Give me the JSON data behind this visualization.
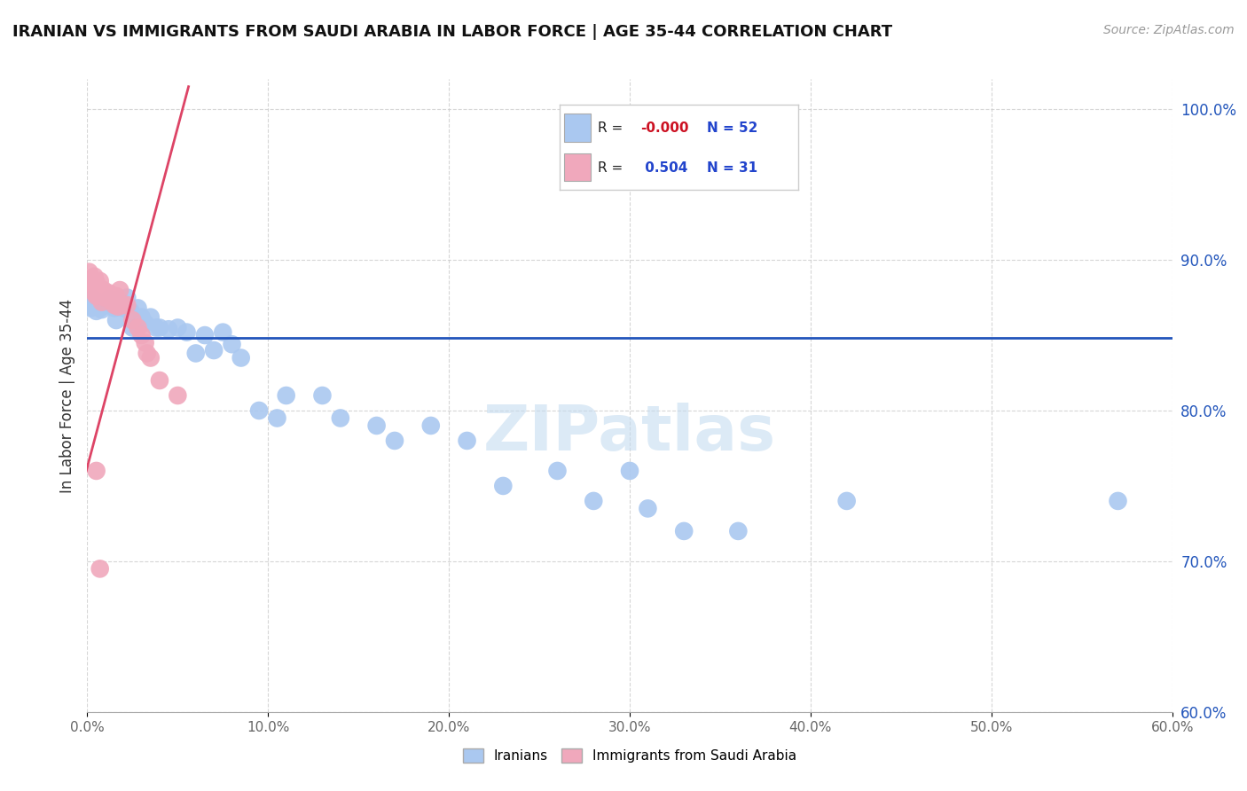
{
  "title": "IRANIAN VS IMMIGRANTS FROM SAUDI ARABIA IN LABOR FORCE | AGE 35-44 CORRELATION CHART",
  "source": "Source: ZipAtlas.com",
  "ylabel": "In Labor Force | Age 35-44",
  "xlim": [
    0.0,
    0.6
  ],
  "ylim": [
    0.6,
    1.02
  ],
  "xticklabels": [
    "0.0%",
    "",
    "",
    "",
    "",
    "",
    "",
    "",
    "",
    "10.0%",
    "",
    "",
    "",
    "",
    "",
    "",
    "",
    "",
    "20.0%",
    "",
    "",
    "",
    "",
    "",
    "",
    "",
    "",
    "",
    "30.0%",
    "",
    "",
    "",
    "",
    "",
    "",
    "",
    "",
    "",
    "40.0%",
    "",
    "",
    "",
    "",
    "",
    "",
    "",
    "",
    "",
    "50.0%",
    "",
    "",
    "",
    "",
    "",
    "",
    "",
    "",
    "",
    "60.0%"
  ],
  "xtick_positions": [
    0.0,
    0.1,
    0.2,
    0.3,
    0.4,
    0.5,
    0.6
  ],
  "xtick_labels_main": [
    "0.0%",
    "10.0%",
    "20.0%",
    "30.0%",
    "40.0%",
    "50.0%",
    "60.0%"
  ],
  "ytick_positions": [
    0.6,
    0.7,
    0.8,
    0.9,
    1.0
  ],
  "ytick_labels": [
    "60.0%",
    "70.0%",
    "80.0%",
    "90.0%",
    "100.0%"
  ],
  "legend_r1": "-0.000",
  "legend_n1": "52",
  "legend_r2": "0.504",
  "legend_n2": "31",
  "blue_color": "#aac8f0",
  "pink_color": "#f0a8bc",
  "blue_line_color": "#2255bb",
  "pink_line_color": "#dd4466",
  "watermark": "ZIPatlas",
  "blue_scatter_x": [
    0.001,
    0.002,
    0.002,
    0.003,
    0.003,
    0.004,
    0.005,
    0.006,
    0.007,
    0.008,
    0.01,
    0.012,
    0.015,
    0.016,
    0.018,
    0.02,
    0.022,
    0.024,
    0.025,
    0.028,
    0.03,
    0.032,
    0.035,
    0.038,
    0.04,
    0.045,
    0.05,
    0.055,
    0.06,
    0.065,
    0.07,
    0.075,
    0.08,
    0.085,
    0.095,
    0.105,
    0.11,
    0.13,
    0.14,
    0.16,
    0.17,
    0.19,
    0.21,
    0.23,
    0.26,
    0.28,
    0.3,
    0.31,
    0.33,
    0.36,
    0.42,
    0.57
  ],
  "blue_scatter_y": [
    0.873,
    0.87,
    0.868,
    0.874,
    0.869,
    0.871,
    0.866,
    0.872,
    0.868,
    0.867,
    0.87,
    0.874,
    0.868,
    0.86,
    0.874,
    0.868,
    0.875,
    0.866,
    0.855,
    0.868,
    0.862,
    0.858,
    0.862,
    0.855,
    0.855,
    0.854,
    0.855,
    0.852,
    0.838,
    0.85,
    0.84,
    0.852,
    0.844,
    0.835,
    0.8,
    0.795,
    0.81,
    0.81,
    0.795,
    0.79,
    0.78,
    0.79,
    0.78,
    0.75,
    0.76,
    0.74,
    0.76,
    0.735,
    0.72,
    0.72,
    0.74,
    0.74
  ],
  "pink_scatter_x": [
    0.001,
    0.002,
    0.003,
    0.004,
    0.004,
    0.005,
    0.005,
    0.006,
    0.007,
    0.007,
    0.008,
    0.009,
    0.01,
    0.012,
    0.013,
    0.015,
    0.016,
    0.017,
    0.018,
    0.02,
    0.022,
    0.025,
    0.028,
    0.03,
    0.032,
    0.033,
    0.035,
    0.04,
    0.05,
    0.005,
    0.007
  ],
  "pink_scatter_y": [
    0.892,
    0.887,
    0.883,
    0.889,
    0.878,
    0.885,
    0.876,
    0.881,
    0.886,
    0.879,
    0.872,
    0.88,
    0.875,
    0.878,
    0.873,
    0.87,
    0.876,
    0.869,
    0.88,
    0.87,
    0.87,
    0.86,
    0.855,
    0.85,
    0.845,
    0.838,
    0.835,
    0.82,
    0.81,
    0.76,
    0.695
  ],
  "blue_hline_y": 0.848,
  "pink_line_x0": -0.005,
  "pink_line_x1": 0.056,
  "pink_line_y0": 0.74,
  "pink_line_y1": 1.015
}
